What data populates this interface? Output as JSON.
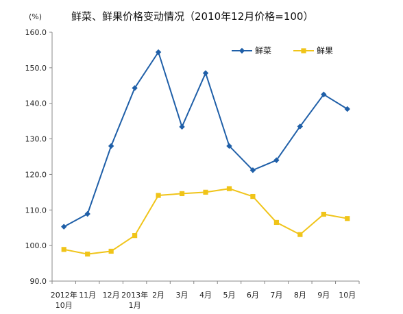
{
  "chart_data": {
    "type": "line",
    "title": "鲜菜、鲜果价格变动情况（2010年12月价格=100）",
    "unit": "(%)",
    "categories": [
      [
        "2012年",
        "10月"
      ],
      [
        "11月"
      ],
      [
        "12月"
      ],
      [
        "2013年",
        "1月"
      ],
      [
        "2月"
      ],
      [
        "3月"
      ],
      [
        "4月"
      ],
      [
        "5月"
      ],
      [
        "6月"
      ],
      [
        "7月"
      ],
      [
        "8月"
      ],
      [
        "9月"
      ],
      [
        "10月"
      ]
    ],
    "ylim": [
      90,
      160
    ],
    "yticks": [
      "90.0",
      "100.0",
      "110.0",
      "120.0",
      "130.0",
      "140.0",
      "150.0",
      "160.0"
    ],
    "ytick_values": [
      90,
      100,
      110,
      120,
      130,
      140,
      150,
      160
    ],
    "grid": false,
    "legend_position": "top-right",
    "series": [
      {
        "name": "鲜菜",
        "color": "#1f5fa8",
        "marker": "diamond",
        "values": [
          105.3,
          108.9,
          128.0,
          144.3,
          154.4,
          133.4,
          148.5,
          128.0,
          121.2,
          124.0,
          133.5,
          142.5,
          138.4
        ]
      },
      {
        "name": "鲜果",
        "color": "#f0c419",
        "marker": "square",
        "values": [
          98.9,
          97.6,
          98.4,
          102.8,
          114.1,
          114.6,
          115.0,
          116.0,
          113.8,
          106.5,
          103.1,
          108.8,
          107.6
        ]
      }
    ]
  }
}
